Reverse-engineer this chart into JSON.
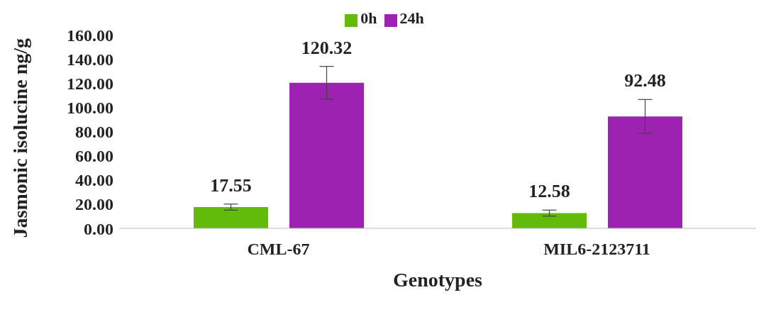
{
  "chart_data": {
    "type": "bar",
    "xlabel": "Genotypes",
    "ylabel": "Jasmonic isolucine ng/g",
    "categories": [
      "CML-67",
      "MIL6-2123711"
    ],
    "series": [
      {
        "name": "0h",
        "color": "#62bb09",
        "values": [
          17.55,
          12.58
        ],
        "errors": [
          2.5,
          2.5
        ]
      },
      {
        "name": "24h",
        "color": "#9c22b2",
        "values": [
          120.32,
          92.48
        ],
        "errors": [
          13.5,
          14
        ]
      }
    ],
    "ylim": [
      0,
      160
    ],
    "yticks": [
      {
        "value": 0,
        "label": "0.00"
      },
      {
        "value": 20,
        "label": "20.00"
      },
      {
        "value": 40,
        "label": "40.00"
      },
      {
        "value": 60,
        "label": "60.00"
      },
      {
        "value": 80,
        "label": "80.00"
      },
      {
        "value": 100,
        "label": "100.00"
      },
      {
        "value": 120,
        "label": "120.00"
      },
      {
        "value": 140,
        "label": "140.00"
      },
      {
        "value": 160,
        "label": "160.00"
      }
    ],
    "data_labels": true,
    "legend": "top",
    "grid": false
  }
}
